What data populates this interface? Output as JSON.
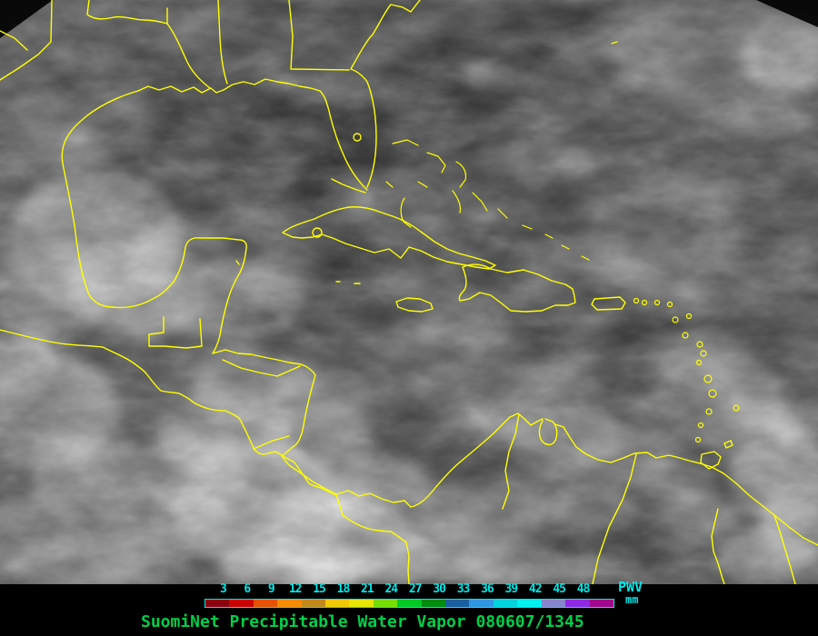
{
  "image": {
    "kind": "weather-satellite-image",
    "coastline_color": "#ffff00",
    "background_color": "#000000"
  },
  "legend": {
    "ticks": [
      "3",
      "6",
      "9",
      "12",
      "15",
      "18",
      "21",
      "24",
      "27",
      "30",
      "33",
      "36",
      "39",
      "42",
      "45",
      "48"
    ],
    "tick_color": "#00e8e8",
    "bar_border_color": "#00e8e8",
    "segment_colors": [
      "#8c0012",
      "#cb0202",
      "#e65300",
      "#fb8b00",
      "#c4891c",
      "#f1c900",
      "#e6e600",
      "#77dd00",
      "#00c926",
      "#028c10",
      "#1a5fa0",
      "#2f96e3",
      "#00d2de",
      "#00efef",
      "#8784ce",
      "#8d2ae4",
      "#a2078f"
    ],
    "units_primary": "PWV",
    "units_secondary": "mm",
    "title": "SuomiNet Precipitable Water Vapor 080607/1345",
    "title_color": "#00cf4a"
  }
}
